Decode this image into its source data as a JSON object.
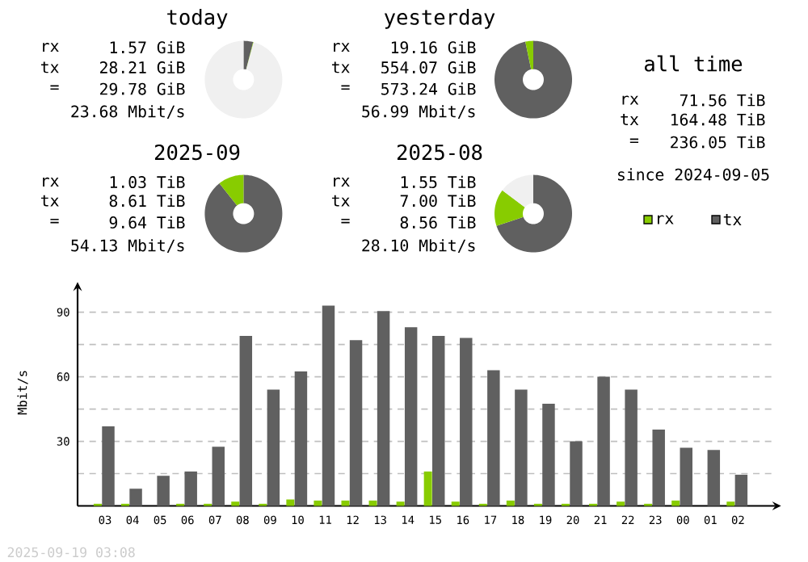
{
  "chart_data": [
    {
      "type": "donut",
      "title": "today",
      "categories": [
        null,
        null,
        null
      ],
      "values": [
        4.0,
        0.2,
        95.8
      ],
      "colors": [
        "#606060",
        "#88cc00",
        "#f0f0f0"
      ],
      "annotations": [
        "rx",
        "1.57 GiB",
        "tx",
        "28.21 GiB",
        "=",
        "29.78 GiB",
        "23.68 Mbit/s"
      ]
    },
    {
      "type": "donut",
      "title": "yesterday",
      "categories": [
        null,
        null
      ],
      "values": [
        96.7,
        3.3
      ],
      "colors": [
        "#606060",
        "#88cc00"
      ],
      "annotations": [
        "rx",
        "19.16 GiB",
        "tx",
        "554.07 GiB",
        "=",
        "573.24 GiB",
        "56.99 Mbit/s"
      ]
    },
    {
      "type": "other",
      "title": "all time",
      "annotations": [
        "rx",
        "71.56 TiB",
        "tx",
        "164.48 TiB",
        "=",
        "236.05 TiB",
        "since 2024-09-05"
      ]
    },
    {
      "type": "donut",
      "title": "2025-09",
      "categories": [
        null,
        null
      ],
      "values": [
        89.3,
        10.7
      ],
      "colors": [
        "#606060",
        "#88cc00"
      ],
      "annotations": [
        "rx",
        "1.03 TiB",
        "tx",
        "8.61 TiB",
        "=",
        "9.64 TiB",
        "54.13 Mbit/s"
      ]
    },
    {
      "type": "donut",
      "title": "2025-08",
      "categories": [
        null,
        null,
        null
      ],
      "values": [
        69.9,
        15.4,
        14.7
      ],
      "colors": [
        "#606060",
        "#88cc00",
        "#f0f0f0"
      ],
      "annotations": [
        "rx",
        "1.55 TiB",
        "tx",
        "7.00 TiB",
        "=",
        "8.56 TiB",
        "28.10 Mbit/s"
      ]
    },
    {
      "type": "bar",
      "ylabel": "Mbit/s",
      "categories": [
        "03",
        "04",
        "05",
        "06",
        "07",
        "08",
        "09",
        "10",
        "11",
        "12",
        "13",
        "14",
        "15",
        "16",
        "17",
        "18",
        "19",
        "20",
        "21",
        "22",
        "23",
        "00",
        "01",
        "02"
      ],
      "series": [
        {
          "name": "rx",
          "color": "#88cc00",
          "values": [
            1,
            1,
            0,
            1,
            1,
            2,
            1,
            3,
            2.5,
            2.5,
            2.5,
            2,
            16,
            2,
            1,
            2.5,
            1,
            1,
            1,
            2,
            1,
            2.5,
            0,
            2
          ]
        },
        {
          "name": "tx",
          "color": "#606060",
          "values": [
            37,
            8,
            14,
            16,
            27.5,
            79,
            54,
            62.5,
            93,
            77,
            90.5,
            83,
            79,
            78,
            63,
            54,
            47.5,
            30,
            60,
            54,
            35.5,
            27,
            26,
            14.5
          ]
        }
      ],
      "ylim": [
        0,
        100
      ],
      "yticks": [
        {
          "value": 15,
          "label": null
        },
        30,
        {
          "value": 45,
          "label": null
        },
        60,
        {
          "value": 75,
          "label": null
        },
        90
      ],
      "grid": "y",
      "legend": "top right",
      "annotations": [
        "2025-09-19 03:08"
      ]
    }
  ]
}
